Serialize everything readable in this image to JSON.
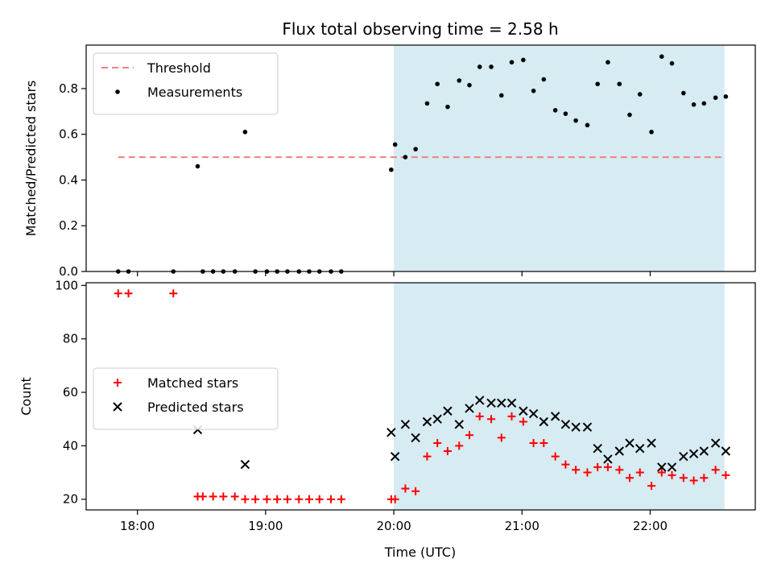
{
  "chart_data": {
    "title": "Flux total observing time = 2.58 h",
    "xlabel": "Time (UTC)",
    "x_ticks": [
      "18:00",
      "19:00",
      "20:00",
      "21:00",
      "22:00"
    ],
    "x_unit": "hours UTC",
    "xlim": [
      17.6,
      22.82
    ],
    "shaded_span": {
      "start": 20.0,
      "end": 22.58,
      "color": "#add8e6"
    },
    "panels": [
      {
        "type": "scatter",
        "ylabel": "Matched/Predicted stars",
        "ylim": [
          0,
          0.99
        ],
        "yticks": [
          "0.0",
          "0.2",
          "0.4",
          "0.6",
          "0.8"
        ],
        "ytick_values": [
          0.0,
          0.2,
          0.4,
          0.6,
          0.8
        ],
        "legend_position": "top-left",
        "threshold": {
          "name": "Threshold",
          "value": 0.5,
          "x_range": [
            17.85,
            22.58
          ],
          "color": "#f08080"
        },
        "series": [
          {
            "name": "Measurements",
            "marker": "dot",
            "color": "#000000",
            "x": [
              17.85,
              17.93,
              18.28,
              18.47,
              18.51,
              18.59,
              18.67,
              18.76,
              18.84,
              18.92,
              19.01,
              19.09,
              19.17,
              19.26,
              19.34,
              19.42,
              19.51,
              19.59,
              19.98,
              20.01,
              20.09,
              20.17,
              20.26,
              20.34,
              20.42,
              20.51,
              20.59,
              20.67,
              20.76,
              20.84,
              20.92,
              21.01,
              21.09,
              21.17,
              21.26,
              21.34,
              21.42,
              21.51,
              21.59,
              21.67,
              21.76,
              21.84,
              21.92,
              22.01,
              22.09,
              22.17,
              22.26,
              22.34,
              22.42,
              22.51,
              22.59
            ],
            "y": [
              0.0,
              0.0,
              0.0,
              0.46,
              0.0,
              0.0,
              0.0,
              0.0,
              0.61,
              0.0,
              0.0,
              0.0,
              0.0,
              0.0,
              0.0,
              0.0,
              0.0,
              0.0,
              0.445,
              0.555,
              0.5,
              0.535,
              0.735,
              0.82,
              0.72,
              0.835,
              0.815,
              0.895,
              0.895,
              0.77,
              0.915,
              0.925,
              0.79,
              0.84,
              0.705,
              0.69,
              0.66,
              0.64,
              0.82,
              0.915,
              0.82,
              0.685,
              0.775,
              0.61,
              0.94,
              0.91,
              0.78,
              0.73,
              0.735,
              0.76,
              0.765
            ]
          }
        ]
      },
      {
        "type": "scatter",
        "ylabel": "Count",
        "ylim": [
          16,
          101
        ],
        "yticks": [
          "20",
          "40",
          "60",
          "80",
          "100"
        ],
        "ytick_values": [
          20,
          40,
          60,
          80,
          100
        ],
        "legend_position": "center-left",
        "series": [
          {
            "name": "Matched stars",
            "marker": "plus",
            "color": "#ff0000",
            "x": [
              17.85,
              17.93,
              18.28,
              18.47,
              18.51,
              18.59,
              18.67,
              18.76,
              18.84,
              18.92,
              19.01,
              19.09,
              19.17,
              19.26,
              19.34,
              19.42,
              19.51,
              19.59,
              19.98,
              20.01,
              20.09,
              20.17,
              20.26,
              20.34,
              20.42,
              20.51,
              20.59,
              20.67,
              20.76,
              20.84,
              20.92,
              21.01,
              21.09,
              21.17,
              21.26,
              21.34,
              21.42,
              21.51,
              21.59,
              21.67,
              21.76,
              21.84,
              21.92,
              22.01,
              22.09,
              22.17,
              22.26,
              22.34,
              22.42,
              22.51,
              22.59
            ],
            "y": [
              97,
              97,
              97,
              21,
              21,
              21,
              21,
              21,
              20,
              20,
              20,
              20,
              20,
              20,
              20,
              20,
              20,
              20,
              20,
              20,
              24,
              23,
              36,
              41,
              38,
              40,
              44,
              51,
              50,
              43,
              51,
              49,
              41,
              41,
              36,
              33,
              31,
              30,
              32,
              32,
              31,
              28,
              30,
              25,
              30,
              29,
              28,
              27,
              28,
              31,
              29
            ]
          },
          {
            "name": "Predicted stars",
            "marker": "x",
            "color": "#000000",
            "x": [
              18.47,
              18.84,
              19.98,
              20.01,
              20.09,
              20.17,
              20.26,
              20.34,
              20.42,
              20.51,
              20.59,
              20.67,
              20.76,
              20.84,
              20.92,
              21.01,
              21.09,
              21.17,
              21.26,
              21.34,
              21.42,
              21.51,
              21.59,
              21.67,
              21.76,
              21.84,
              21.92,
              22.01,
              22.09,
              22.17,
              22.26,
              22.34,
              22.42,
              22.51,
              22.59
            ],
            "y": [
              46,
              33,
              45,
              36,
              48,
              43,
              49,
              50,
              53,
              48,
              54,
              57,
              56,
              56,
              56,
              53,
              52,
              49,
              51,
              48,
              47,
              47,
              39,
              35,
              38,
              41,
              39,
              41,
              32,
              32,
              36,
              37,
              38,
              41,
              38
            ]
          }
        ]
      }
    ]
  }
}
